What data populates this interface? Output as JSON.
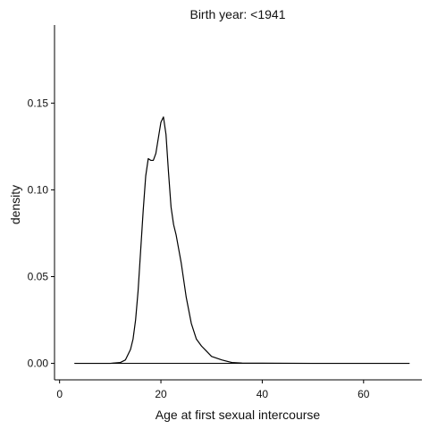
{
  "chart_data": {
    "type": "area",
    "title": "Birth year: <1941",
    "xlabel": "Age at first sexual intercourse",
    "ylabel": "density",
    "xlim": [
      -1,
      71.5
    ],
    "ylim": [
      -0.0095,
      0.195
    ],
    "x_ticks": [
      0,
      20,
      40,
      60
    ],
    "y_ticks": [
      0.0,
      0.05,
      0.1,
      0.15
    ],
    "x_tick_labels": [
      "0",
      "20",
      "40",
      "60"
    ],
    "y_tick_labels": [
      "0.00",
      "0.05",
      "0.10",
      "0.15"
    ],
    "grid": false,
    "legend": "none",
    "series": [
      {
        "x": [
          3.0,
          10.0,
          12.0,
          13.0,
          14.0,
          14.5,
          15.0,
          15.5,
          16.0,
          16.5,
          17.0,
          17.5,
          18.0,
          18.5,
          19.0,
          19.5,
          20.0,
          20.5,
          21.0,
          21.5,
          22.0,
          22.5,
          23.0,
          23.5,
          24.0,
          25.0,
          26.0,
          27.0,
          28.0,
          29.0,
          30.0,
          32.0,
          34.0,
          36.0,
          40.0,
          50.0,
          60.0,
          69.0
        ],
        "y": [
          0.0,
          0.0,
          0.0005,
          0.002,
          0.008,
          0.014,
          0.025,
          0.042,
          0.065,
          0.088,
          0.108,
          0.118,
          0.117,
          0.117,
          0.121,
          0.13,
          0.139,
          0.142,
          0.132,
          0.11,
          0.09,
          0.08,
          0.074,
          0.066,
          0.058,
          0.038,
          0.023,
          0.014,
          0.01,
          0.007,
          0.004,
          0.002,
          0.0005,
          0.0002,
          0.0001,
          0.0,
          0.0,
          0.0
        ]
      }
    ]
  }
}
